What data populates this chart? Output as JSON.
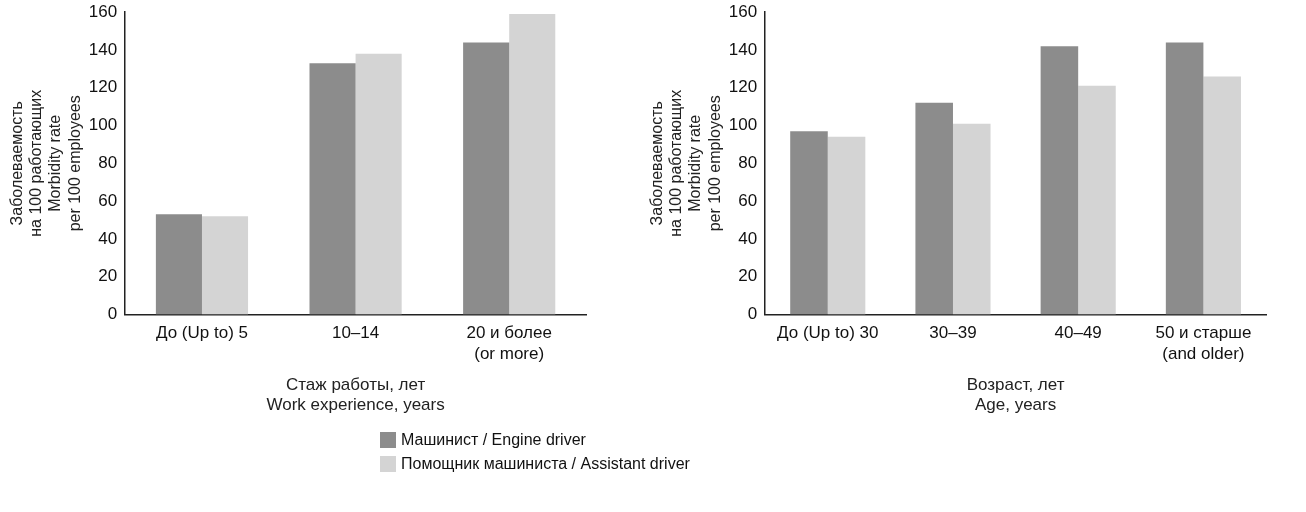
{
  "chart_data": [
    {
      "type": "bar",
      "xlabel": "Стаж работы, лет\nWork experience, years",
      "ylabel": "Заболеваемость\nна 100 работающих\nMorbidity rate\nper 100 employees",
      "categories": [
        "До (Up to) 5",
        "10–14",
        "20 и более\n(or more)"
      ],
      "series": [
        {
          "name": "Машинист / Engine driver",
          "color": "#8c8c8c",
          "values": [
            53,
            133,
            144
          ]
        },
        {
          "name": "Помощник машиниста / Assistant driver",
          "color": "#d4d4d4",
          "values": [
            52,
            138,
            159
          ]
        }
      ],
      "ylim": [
        0,
        160
      ],
      "yticks": [
        0,
        20,
        40,
        60,
        80,
        100,
        120,
        140,
        160
      ],
      "grid": false,
      "legend": "bottom"
    },
    {
      "type": "bar",
      "xlabel": "Возраст, лет\nAge, years",
      "ylabel": "Заболеваемость\nна 100 работающих\nMorbidity rate\nper 100 employees",
      "categories": [
        "До (Up to) 30",
        "30–39",
        "40–49",
        "50 и старше\n(and older)"
      ],
      "series": [
        {
          "color": "#8c8c8c",
          "values": [
            97,
            112,
            142,
            144
          ]
        },
        {
          "color": "#d4d4d4",
          "values": [
            94,
            101,
            121,
            126
          ]
        }
      ],
      "ylim": [
        0,
        160
      ],
      "yticks": [
        0,
        20,
        40,
        60,
        80,
        100,
        120,
        140,
        160
      ],
      "grid": false
    }
  ]
}
